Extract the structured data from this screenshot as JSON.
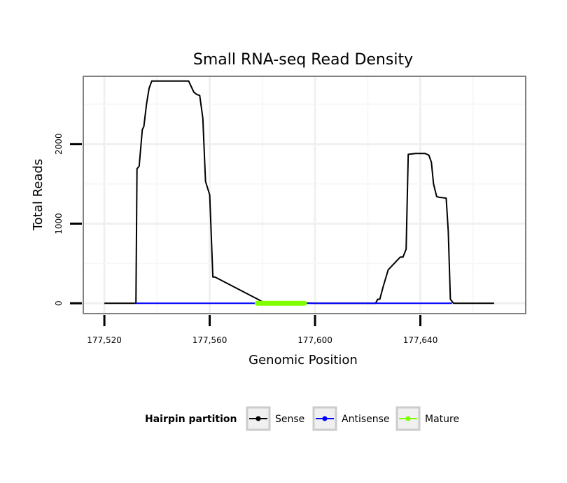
{
  "chart_data": {
    "type": "line",
    "title": "Small RNA-seq Read Density",
    "xlabel": "Genomic Position",
    "ylabel": "Total Reads",
    "xlim": [
      177512,
      177680
    ],
    "ylim": [
      -130,
      2850
    ],
    "x_ticks": [
      177520,
      177560,
      177600,
      177640
    ],
    "x_tick_labels": [
      "177,520",
      "177,560",
      "177,600",
      "177,640"
    ],
    "y_ticks": [
      0,
      1000,
      2000
    ],
    "y_tick_labels": [
      "0",
      "1000",
      "2000"
    ],
    "grid": true,
    "legend": {
      "title": "Hairpin partition",
      "placement": "bottom",
      "entries": [
        "Sense",
        "Antisense",
        "Mature"
      ]
    },
    "series": [
      {
        "name": "Sense",
        "color": "#000000",
        "x": [
          177520,
          177532,
          177532.4,
          177533.2,
          177534.4,
          177535,
          177536,
          177537,
          177538,
          177541,
          177547,
          177549.8,
          177552,
          177554,
          177555.2,
          177556.2,
          177557.4,
          177558.4,
          177560,
          177561.2,
          177562,
          177580,
          177600,
          177620,
          177621,
          177623,
          177623.8,
          177624.6,
          177625.8,
          177627.8,
          177632.4,
          177633.4,
          177634.6,
          177635.4,
          177638.2,
          177641.8,
          177643.2,
          177644.2,
          177645,
          177646.2,
          177647.2,
          177649.8,
          177650.6,
          177651.4,
          177652.6,
          177655,
          177660,
          177668
        ],
        "values": [
          0,
          0,
          1690,
          1720,
          2180,
          2220,
          2500,
          2700,
          2790,
          2790,
          2790,
          2790,
          2790,
          2650,
          2620,
          2610,
          2320,
          1530,
          1360,
          330,
          330,
          20,
          0,
          0,
          0,
          0,
          50,
          50,
          200,
          420,
          580,
          580,
          680,
          1870,
          1880,
          1880,
          1860,
          1770,
          1500,
          1340,
          1330,
          1320,
          900,
          50,
          0,
          0,
          0,
          0
        ]
      },
      {
        "name": "Antisense",
        "color": "#0000ff",
        "x": [
          177532,
          177562,
          177625,
          177652
        ],
        "values": [
          0,
          0,
          0,
          0
        ]
      },
      {
        "name": "Mature",
        "color": "#7fff00",
        "x": [
          177578,
          177596
        ],
        "values": [
          0,
          0
        ]
      }
    ]
  }
}
